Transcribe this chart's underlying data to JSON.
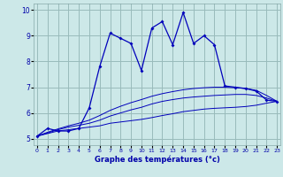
{
  "xlabel": "Graphe des températures (°c)",
  "x_hours": [
    0,
    1,
    2,
    3,
    4,
    5,
    6,
    7,
    8,
    9,
    10,
    11,
    12,
    13,
    14,
    15,
    16,
    17,
    18,
    19,
    20,
    21,
    22,
    23
  ],
  "temp_line": [
    5.1,
    5.4,
    5.3,
    5.3,
    5.4,
    6.2,
    7.8,
    9.1,
    8.9,
    8.7,
    7.65,
    9.3,
    9.55,
    8.65,
    9.9,
    8.7,
    9.0,
    8.65,
    7.05,
    7.0,
    6.95,
    6.85,
    6.5,
    6.45
  ],
  "line1": [
    5.1,
    5.2,
    5.3,
    5.35,
    5.4,
    5.45,
    5.5,
    5.6,
    5.65,
    5.7,
    5.75,
    5.82,
    5.9,
    5.97,
    6.05,
    6.1,
    6.15,
    6.18,
    6.2,
    6.22,
    6.25,
    6.3,
    6.38,
    6.45
  ],
  "line2": [
    5.1,
    5.22,
    5.35,
    5.45,
    5.52,
    5.6,
    5.72,
    5.88,
    6.0,
    6.12,
    6.22,
    6.35,
    6.45,
    6.52,
    6.58,
    6.62,
    6.65,
    6.68,
    6.7,
    6.72,
    6.72,
    6.68,
    6.58,
    6.45
  ],
  "line3": [
    5.1,
    5.25,
    5.38,
    5.5,
    5.6,
    5.72,
    5.9,
    6.1,
    6.26,
    6.4,
    6.52,
    6.65,
    6.75,
    6.83,
    6.9,
    6.95,
    6.98,
    7.0,
    7.0,
    6.98,
    6.95,
    6.88,
    6.68,
    6.45
  ],
  "bg_color": "#cce8e8",
  "line_color": "#0000bb",
  "grid_color": "#99bbbb",
  "ylim": [
    4.75,
    10.25
  ],
  "yticks": [
    5,
    6,
    7,
    8,
    9,
    10
  ],
  "xticks": [
    0,
    1,
    2,
    3,
    4,
    5,
    6,
    7,
    8,
    9,
    10,
    11,
    12,
    13,
    14,
    15,
    16,
    17,
    18,
    19,
    20,
    21,
    22,
    23
  ]
}
